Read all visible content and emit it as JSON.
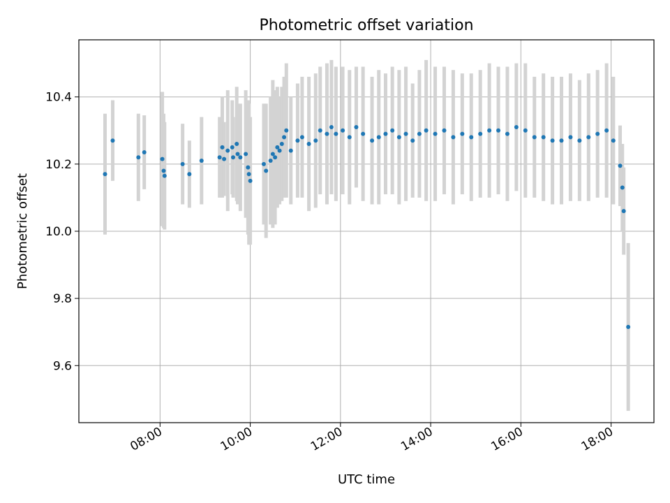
{
  "chart_data": {
    "type": "scatter",
    "title": "Photometric offset variation",
    "xlabel": "UTC time",
    "ylabel": "Photometric offset",
    "x_unit": "hours (UTC)",
    "xlim": [
      6.2,
      18.95
    ],
    "ylim": [
      9.43,
      10.57
    ],
    "grid": true,
    "x_ticks": [
      8,
      10,
      12,
      14,
      16,
      18
    ],
    "x_tick_labels": [
      "08:00",
      "10:00",
      "12:00",
      "14:00",
      "16:00",
      "18:00"
    ],
    "y_ticks": [
      9.6,
      9.8,
      10.0,
      10.2,
      10.4
    ],
    "y_tick_labels": [
      "9.6",
      "9.8",
      "10.0",
      "10.2",
      "10.4"
    ],
    "point_color": "#1f77b4",
    "errorbar_color": "#d3d3d3",
    "series": [
      {
        "x": [
          6.78,
          6.95,
          7.52,
          7.65,
          8.05,
          8.08,
          8.1,
          8.5,
          8.65,
          8.92,
          9.32,
          9.38,
          9.42,
          9.5,
          9.6,
          9.62,
          9.7,
          9.72,
          9.78,
          9.9,
          9.95,
          9.97,
          10.0,
          10.3,
          10.35,
          10.45,
          10.5,
          10.55,
          10.6,
          10.65,
          10.7,
          10.75,
          10.8,
          10.9,
          11.05,
          11.15,
          11.3,
          11.45,
          11.55,
          11.7,
          11.8,
          11.9,
          12.05,
          12.2,
          12.35,
          12.5,
          12.7,
          12.85,
          13.0,
          13.15,
          13.3,
          13.45,
          13.6,
          13.75,
          13.9,
          14.1,
          14.3,
          14.5,
          14.7,
          14.9,
          15.1,
          15.3,
          15.5,
          15.7,
          15.9,
          16.1,
          16.3,
          16.5,
          16.7,
          16.9,
          17.1,
          17.3,
          17.5,
          17.7,
          17.9,
          18.05,
          18.2,
          18.25,
          18.28,
          18.38
        ],
        "y": [
          10.17,
          10.27,
          10.22,
          10.235,
          10.215,
          10.18,
          10.165,
          10.2,
          10.17,
          10.21,
          10.22,
          10.25,
          10.215,
          10.24,
          10.25,
          10.22,
          10.26,
          10.23,
          10.22,
          10.23,
          10.19,
          10.17,
          10.15,
          10.2,
          10.18,
          10.21,
          10.23,
          10.22,
          10.25,
          10.24,
          10.26,
          10.28,
          10.3,
          10.24,
          10.27,
          10.28,
          10.26,
          10.27,
          10.3,
          10.29,
          10.31,
          10.29,
          10.3,
          10.28,
          10.31,
          10.29,
          10.27,
          10.28,
          10.29,
          10.3,
          10.28,
          10.29,
          10.27,
          10.29,
          10.3,
          10.29,
          10.3,
          10.28,
          10.29,
          10.28,
          10.29,
          10.3,
          10.3,
          10.29,
          10.31,
          10.3,
          10.28,
          10.28,
          10.27,
          10.27,
          10.28,
          10.27,
          10.28,
          10.29,
          10.3,
          10.27,
          10.195,
          10.13,
          10.06,
          9.715
        ],
        "err": [
          0.18,
          0.12,
          0.13,
          0.11,
          0.2,
          0.17,
          0.16,
          0.12,
          0.1,
          0.13,
          0.12,
          0.15,
          0.11,
          0.18,
          0.14,
          0.12,
          0.17,
          0.15,
          0.16,
          0.19,
          0.2,
          0.21,
          0.19,
          0.18,
          0.2,
          0.19,
          0.22,
          0.2,
          0.18,
          0.16,
          0.17,
          0.18,
          0.2,
          0.16,
          0.17,
          0.18,
          0.2,
          0.2,
          0.19,
          0.21,
          0.2,
          0.2,
          0.19,
          0.2,
          0.18,
          0.2,
          0.19,
          0.2,
          0.18,
          0.19,
          0.2,
          0.2,
          0.17,
          0.19,
          0.21,
          0.2,
          0.19,
          0.2,
          0.18,
          0.19,
          0.19,
          0.2,
          0.19,
          0.2,
          0.19,
          0.2,
          0.18,
          0.19,
          0.19,
          0.19,
          0.19,
          0.18,
          0.19,
          0.19,
          0.2,
          0.19,
          0.12,
          0.13,
          0.13,
          0.25
        ]
      }
    ]
  }
}
